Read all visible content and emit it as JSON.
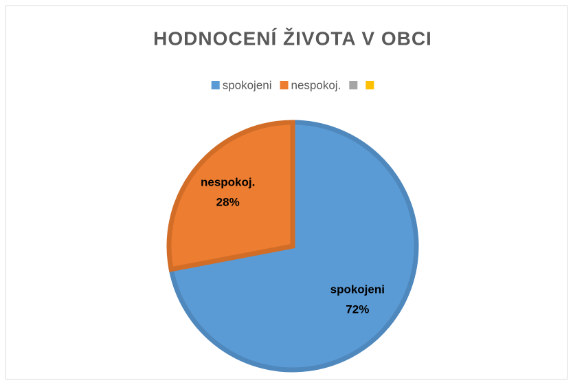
{
  "chart_data": {
    "type": "pie",
    "title": "HODNOCENÍ ŽIVOTA V OBCI",
    "categories": [
      "spokojeni",
      "nespokoj.",
      null,
      null
    ],
    "values": [
      72,
      28,
      0,
      0
    ],
    "value_labels": [
      "72%",
      "28%",
      null,
      null
    ],
    "colors": [
      "#5b9bd5",
      "#ed7d31",
      "#a5a5a5",
      "#ffc000"
    ],
    "stroke_colors": [
      "#4f88bd",
      "#d26d28",
      "#8f8f8f",
      "#e0a800"
    ],
    "legend": "top"
  }
}
